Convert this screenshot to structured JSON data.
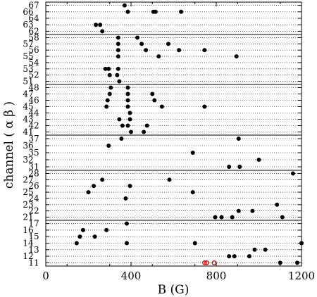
{
  "chart_data": {
    "type": "scatter",
    "xlabel": "B (G)",
    "ylabel": "channel ( α β )",
    "xlim": [
      0,
      1200
    ],
    "x_ticks": [
      "0",
      "400",
      "800",
      "1200"
    ],
    "grid": "dotted horizontal line per channel",
    "colors": {
      "point": "#000000",
      "open_point": "#e00000"
    },
    "panels": [
      {
        "rows": [
          {
            "channel": "67",
            "x": [
              370
            ]
          },
          {
            "channel": "66",
            "x": [
              385,
              505,
              515,
              635
            ]
          },
          {
            "channel": "64",
            "x": []
          },
          {
            "channel": "63",
            "x": [
              235,
              255
            ]
          },
          {
            "channel": "62",
            "x": [
              265
            ]
          }
        ]
      },
      {
        "rows": [
          {
            "channel": "58",
            "x": [
              340,
              430
            ]
          },
          {
            "channel": "57",
            "x": [
              340,
              450,
              575
            ]
          },
          {
            "channel": "56",
            "x": [
              340,
              470,
              625,
              745
            ]
          },
          {
            "channel": "55",
            "x": [
              340,
              530,
              895
            ]
          },
          {
            "channel": "54",
            "x": []
          },
          {
            "channel": "53",
            "x": [
              280,
              295,
              340
            ]
          },
          {
            "channel": "52",
            "x": [
              300,
              335
            ]
          },
          {
            "channel": "51",
            "x": [
              345
            ]
          }
        ]
      },
      {
        "rows": [
          {
            "channel": "48",
            "x": [
              305,
              385
            ]
          },
          {
            "channel": "47",
            "x": [
              300,
              385,
              500
            ]
          },
          {
            "channel": "46",
            "x": [
              290,
              385,
              510
            ]
          },
          {
            "channel": "45",
            "x": [
              285,
              385,
              545,
              745
            ]
          },
          {
            "channel": "44",
            "x": [
              395
            ]
          },
          {
            "channel": "43",
            "x": [
              345,
              395
            ]
          },
          {
            "channel": "42",
            "x": [
              360,
              385,
              475
            ]
          },
          {
            "channel": "41",
            "x": [
              400,
              460
            ]
          }
        ]
      },
      {
        "rows": [
          {
            "channel": "37",
            "x": [
              355,
              905
            ]
          },
          {
            "channel": "36",
            "x": [
              295
            ]
          },
          {
            "channel": "35",
            "x": [
              690
            ]
          },
          {
            "channel": "32",
            "x": [
              1000
            ]
          },
          {
            "channel": "31",
            "x": [
              860,
              910
            ]
          }
        ]
      },
      {
        "rows": [
          {
            "channel": "28",
            "x": [
              1160
            ]
          },
          {
            "channel": "27",
            "x": [
              265,
              580
            ]
          },
          {
            "channel": "26",
            "x": [
              225,
              395
            ]
          },
          {
            "channel": "25",
            "x": [
              200,
              690
            ]
          },
          {
            "channel": "24",
            "x": [
              375
            ]
          },
          {
            "channel": "23",
            "x": [
              1085
            ]
          },
          {
            "channel": "22",
            "x": [
              905,
              970
            ]
          },
          {
            "channel": "21",
            "x": [
              795,
              825,
              875,
              1110
            ]
          }
        ]
      },
      {
        "rows": [
          {
            "channel": "17",
            "x": [
              380
            ]
          },
          {
            "channel": "16",
            "x": [
              175,
              285
            ]
          },
          {
            "channel": "15",
            "x": [
              160,
              230
            ]
          },
          {
            "channel": "14",
            "x": [
              145,
              380,
              700,
              1200
            ]
          },
          {
            "channel": "13",
            "x": [
              1030,
              980
            ]
          },
          {
            "channel": "12",
            "x": [
              860,
              885,
              955
            ]
          },
          {
            "channel": "11",
            "x": [
              1100,
              1180
            ],
            "open_x": [
              745,
              755,
              790
            ]
          }
        ]
      }
    ]
  }
}
